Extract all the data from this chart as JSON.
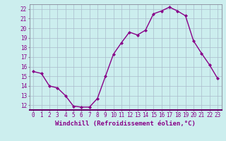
{
  "x": [
    0,
    1,
    2,
    3,
    4,
    5,
    6,
    7,
    8,
    9,
    10,
    11,
    12,
    13,
    14,
    15,
    16,
    17,
    18,
    19,
    20,
    21,
    22,
    23
  ],
  "y": [
    15.5,
    15.3,
    14.0,
    13.8,
    13.0,
    11.9,
    11.8,
    11.8,
    12.7,
    15.0,
    17.3,
    18.5,
    19.6,
    19.3,
    19.8,
    21.5,
    21.8,
    22.2,
    21.8,
    21.3,
    18.7,
    17.4,
    16.2,
    14.8
  ],
  "line_color": "#880088",
  "marker": "D",
  "marker_size": 2,
  "bg_color": "#cceeee",
  "grid_color": "#aabbcc",
  "xlabel": "Windchill (Refroidissement éolien,°C)",
  "ylim": [
    11.5,
    22.5
  ],
  "xlim": [
    -0.5,
    23.5
  ],
  "yticks": [
    12,
    13,
    14,
    15,
    16,
    17,
    18,
    19,
    20,
    21,
    22
  ],
  "xticks": [
    0,
    1,
    2,
    3,
    4,
    5,
    6,
    7,
    8,
    9,
    10,
    11,
    12,
    13,
    14,
    15,
    16,
    17,
    18,
    19,
    20,
    21,
    22,
    23
  ],
  "tick_fontsize": 5.5,
  "xlabel_fontsize": 6.5,
  "line_width": 1.0
}
